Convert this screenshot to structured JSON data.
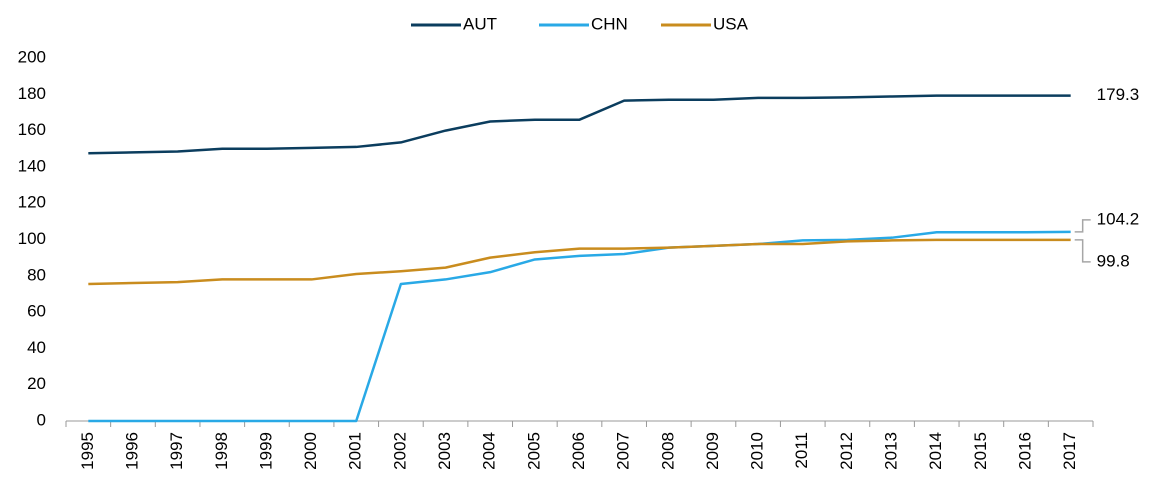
{
  "chart_data": {
    "type": "line",
    "categories": [
      "1995",
      "1996",
      "1997",
      "1998",
      "1999",
      "2000",
      "2001",
      "2002",
      "2003",
      "2004",
      "2005",
      "2006",
      "2007",
      "2008",
      "2009",
      "2010",
      "2011",
      "2012",
      "2013",
      "2014",
      "2015",
      "2016",
      "2017"
    ],
    "series": [
      {
        "name": "AUT",
        "color": "#0b3d5e",
        "values": [
          147.5,
          148,
          148.5,
          150,
          150,
          150.5,
          151,
          153.5,
          160,
          165,
          166,
          166,
          176.5,
          177,
          177,
          178,
          178,
          178.3,
          178.8,
          179.3,
          179.3,
          179.3,
          179.3
        ]
      },
      {
        "name": "CHN",
        "color": "#29a9e6",
        "values": [
          0,
          0,
          0,
          0,
          0,
          0,
          0,
          75.5,
          78,
          82,
          89,
          91,
          92,
          95.5,
          96.5,
          97.5,
          99.5,
          99.8,
          101,
          104,
          104,
          104,
          104.2
        ]
      },
      {
        "name": "USA",
        "color": "#c98c1e",
        "values": [
          75.5,
          76,
          76.5,
          78,
          78,
          78,
          81,
          82.5,
          84.5,
          90,
          93,
          95,
          95,
          95.5,
          96.5,
          97.5,
          97.5,
          99,
          99.5,
          99.8,
          99.8,
          99.8,
          99.8
        ]
      }
    ],
    "ylim": [
      0,
      200
    ],
    "yticks": [
      0,
      20,
      40,
      60,
      80,
      100,
      120,
      140,
      160,
      180,
      200
    ],
    "legend": "top",
    "grid": false
  }
}
